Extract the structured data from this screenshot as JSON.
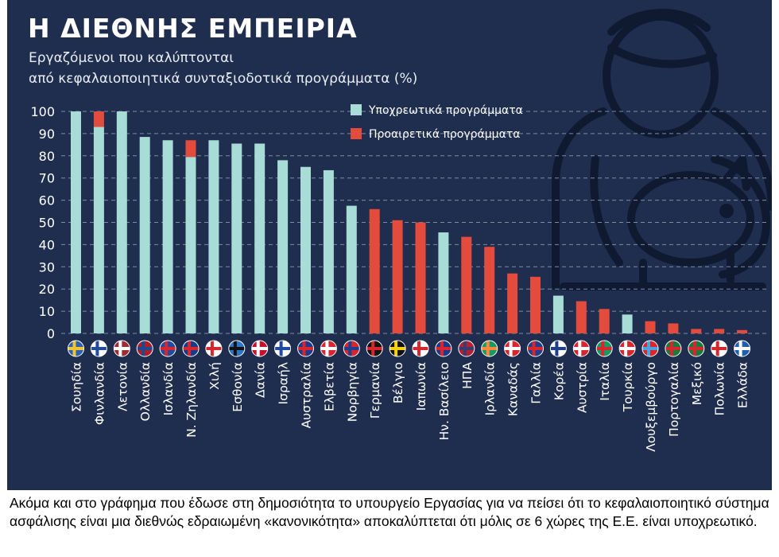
{
  "title": "Η ΔΙΕΘΝΗΣ ΕΜΠΕΙΡΙΑ",
  "subtitle_line1": "Εργαζόμενοι που καλύπτονται",
  "subtitle_line2": "από κεφαλαιοποιητικά συνταξιοδοτικά προγράμματα (%)",
  "caption": "Ακόμα και στο γράφημα που έδωσε στη δημοσιότητα το υπουργείο Εργασίας για να πείσει ότι το κεφαλαιοποιητικό σύστημα ασφάλισης είναι μια διεθνώς εδραιωμένη «κανονικότητα» αποκαλύπτεται ότι μόλις σε 6 χώρες της Ε.Ε. είναι υποχρεωτικό.",
  "colors": {
    "background": "#1f2e4f",
    "mandatory": "#a8dcd6",
    "voluntary": "#e34b3c",
    "grid": "#7f8aa3",
    "text": "#ffffff"
  },
  "icons": [
    "woman-with-piggy-bank-illustration",
    "country-flag-icons"
  ],
  "chart_data": {
    "type": "bar",
    "stacked": true,
    "ylim": [
      0,
      100
    ],
    "yticks": [
      0,
      10,
      20,
      30,
      40,
      50,
      60,
      70,
      80,
      90,
      100
    ],
    "grid": true,
    "legend_position": "top-right",
    "categories": [
      "Σουηδία",
      "Φινλανδία",
      "Λετονία",
      "Ολλανδία",
      "Ισλανδία",
      "Ν. Ζηλανδία",
      "Χιλή",
      "Εσθονία",
      "Δανία",
      "Ισραήλ",
      "Αυστραλία",
      "Ελβετία",
      "Νορβηγία",
      "Γερμανία",
      "Βέλγιο",
      "Ιαπωνία",
      "Ην. Βασίλειο",
      "ΗΠΑ",
      "Ιρλανδία",
      "Καναδάς",
      "Γαλλία",
      "Κορέα",
      "Αυστρία",
      "Ιταλία",
      "Τουρκία",
      "Λουξεμβούργο",
      "Πορτογαλία",
      "Μεξικό",
      "Πολωνία",
      "Ελλάδα"
    ],
    "series": [
      {
        "name": "Υποχρεωτικά προγράμματα",
        "values": [
          100,
          93,
          100,
          88.5,
          87,
          79.5,
          87,
          85.5,
          85.5,
          78,
          75,
          73.5,
          57.5,
          0,
          0,
          0,
          45.5,
          0,
          0,
          0,
          0,
          17,
          0,
          0,
          8.5,
          0,
          0,
          0,
          0,
          0
        ]
      },
      {
        "name": "Προαιρετικά προγράμματα",
        "values": [
          0,
          7,
          0,
          0,
          0,
          7.5,
          0,
          0,
          0,
          0,
          0,
          0,
          0,
          56,
          51,
          50,
          0,
          43.5,
          39,
          27,
          25.5,
          0,
          14.5,
          11,
          0,
          5.5,
          4.5,
          2,
          2,
          1.5
        ]
      }
    ]
  }
}
